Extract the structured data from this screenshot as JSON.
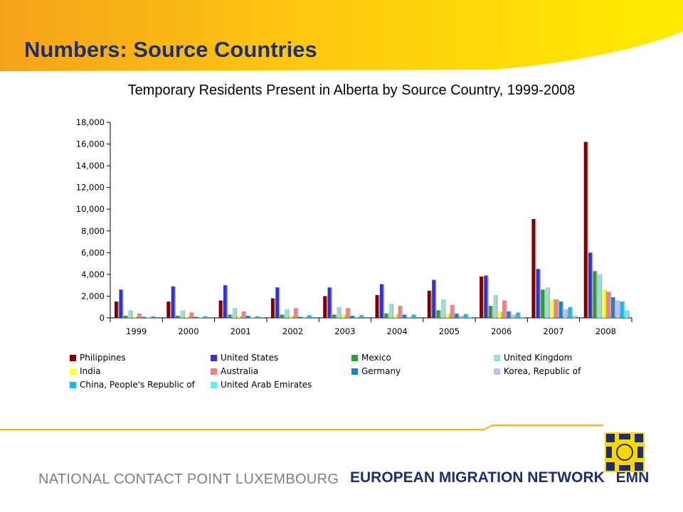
{
  "page": {
    "title": "Numbers: Source Countries",
    "footer_left": "NATIONAL CONTACT POINT LUXEMBOURG",
    "footer_right": "EUROPEAN MIGRATION NETWORK",
    "footer_right_abbr": "EMN"
  },
  "colors": {
    "header_gradient_start": "#f5a21a",
    "header_gradient_end": "#ffe800",
    "title_text": "#1f2f6b",
    "footer_line": "#f7b500",
    "footer_gray": "#7f7f7f",
    "logo_blue": "#1f2f6b",
    "logo_yellow": "#ffd700"
  },
  "chart_data": {
    "type": "bar",
    "title": "Temporary Residents Present in Alberta by Source Country, 1999-2008",
    "xlabel": "",
    "ylabel": "",
    "ylim": [
      0,
      18000
    ],
    "yticks": [
      0,
      2000,
      4000,
      6000,
      8000,
      10000,
      12000,
      14000,
      16000,
      18000
    ],
    "ytick_labels": [
      "0",
      "2,000",
      "4,000",
      "6,000",
      "8,000",
      "10,000",
      "12,000",
      "14,000",
      "16,000",
      "18,000"
    ],
    "grid": false,
    "legend_position": "bottom",
    "categories": [
      "1999",
      "2000",
      "2001",
      "2002",
      "2003",
      "2004",
      "2005",
      "2006",
      "2007",
      "2008"
    ],
    "series": [
      {
        "name": "Philippines",
        "color": "#7f0000",
        "values": [
          1500,
          1500,
          1600,
          1800,
          2000,
          2100,
          2500,
          3800,
          9100,
          16200
        ]
      },
      {
        "name": "United States",
        "color": "#3333cc",
        "values": [
          2600,
          2900,
          3000,
          2800,
          2800,
          3100,
          3500,
          3900,
          4500,
          6000
        ]
      },
      {
        "name": "Mexico",
        "color": "#339933",
        "values": [
          200,
          200,
          300,
          300,
          300,
          400,
          700,
          1100,
          2600,
          4300
        ]
      },
      {
        "name": "United Kingdom",
        "color": "#99dddd",
        "values": [
          700,
          700,
          900,
          800,
          1000,
          1300,
          1700,
          2100,
          2800,
          4000
        ]
      },
      {
        "name": "India",
        "color": "#ffff33",
        "values": [
          100,
          100,
          200,
          200,
          300,
          300,
          400,
          600,
          1700,
          2600
        ]
      },
      {
        "name": "Australia",
        "color": "#f08080",
        "values": [
          400,
          500,
          600,
          900,
          900,
          1100,
          1200,
          1600,
          1700,
          2400
        ]
      },
      {
        "name": "Germany",
        "color": "#1f7fbf",
        "values": [
          100,
          100,
          200,
          100,
          200,
          300,
          400,
          600,
          1500,
          1900
        ]
      },
      {
        "name": "Korea, Republic of",
        "color": "#c0c0f0",
        "values": [
          50,
          50,
          50,
          100,
          100,
          100,
          200,
          300,
          800,
          1600
        ]
      },
      {
        "name": "China, People's Republic of",
        "color": "#11bbee",
        "values": [
          150,
          150,
          150,
          250,
          250,
          300,
          350,
          500,
          1000,
          1500
        ]
      },
      {
        "name": "United Arab Emirates",
        "color": "#66eeee",
        "values": [
          0,
          0,
          0,
          0,
          0,
          0,
          100,
          100,
          200,
          700
        ]
      }
    ]
  }
}
